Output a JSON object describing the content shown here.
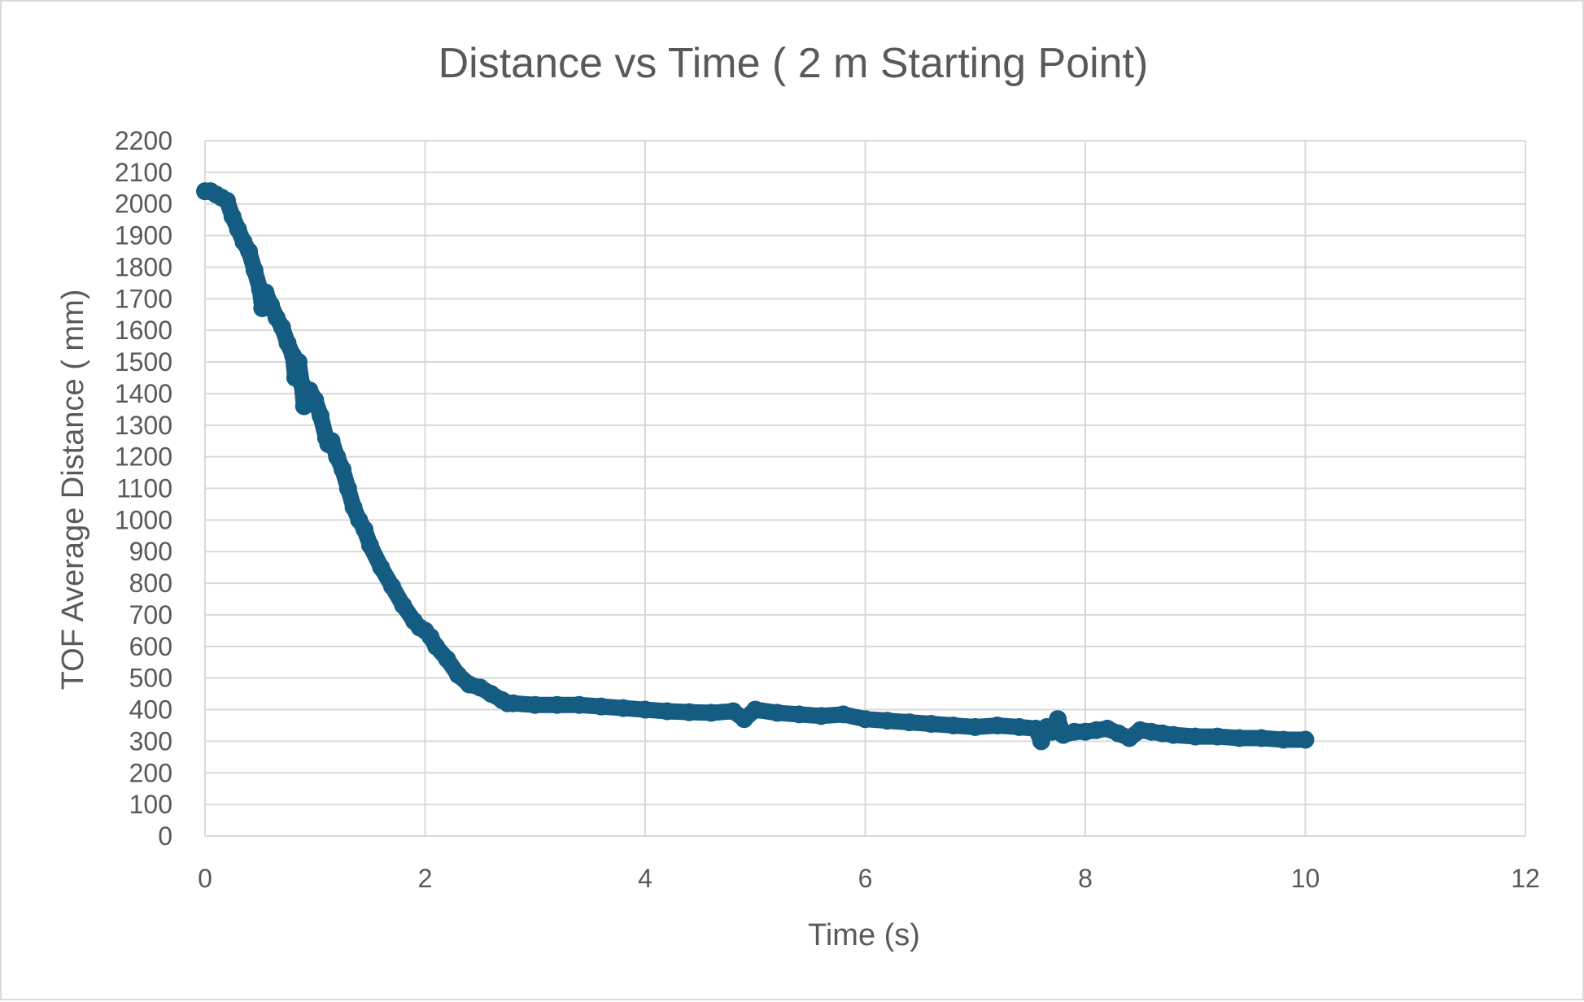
{
  "chart_data": {
    "type": "scatter",
    "title": "Distance vs Time ( 2 m Starting Point)",
    "xlabel": "Time (s)",
    "ylabel": "TOF Average Distance ( mm)",
    "xlim": [
      0,
      12
    ],
    "ylim": [
      0,
      2200
    ],
    "x_ticks": [
      "0",
      "2",
      "4",
      "6",
      "8",
      "10",
      "12"
    ],
    "y_ticks": [
      "0",
      "100",
      "200",
      "300",
      "400",
      "500",
      "600",
      "700",
      "800",
      "900",
      "1000",
      "1100",
      "1200",
      "1300",
      "1400",
      "1500",
      "1600",
      "1700",
      "1800",
      "1900",
      "2000",
      "2100",
      "2200"
    ],
    "grid": true,
    "legend": "none",
    "series_color": "#155c82",
    "series": [
      {
        "x": [
          0,
          0.05,
          0.1,
          0.15,
          0.2,
          0.25,
          0.3,
          0.35,
          0.4,
          0.45,
          0.5,
          0.52,
          0.55,
          0.6,
          0.65,
          0.7,
          0.75,
          0.8,
          0.82,
          0.85,
          0.88,
          0.9,
          0.95,
          1.0,
          1.05,
          1.1,
          1.12,
          1.15,
          1.2,
          1.25,
          1.3,
          1.35,
          1.4,
          1.45,
          1.5,
          1.6,
          1.7,
          1.8,
          1.9,
          1.95,
          2.0,
          2.05,
          2.1,
          2.2,
          2.3,
          2.4,
          2.5,
          2.6,
          2.7,
          2.75,
          2.8,
          3.0,
          3.2,
          3.4,
          3.6,
          3.8,
          4.0,
          4.2,
          4.4,
          4.6,
          4.8,
          4.9,
          5.0,
          5.2,
          5.4,
          5.6,
          5.8,
          6.0,
          6.2,
          6.4,
          6.6,
          6.8,
          7.0,
          7.2,
          7.4,
          7.55,
          7.6,
          7.65,
          7.7,
          7.75,
          7.8,
          7.9,
          8.0,
          8.1,
          8.2,
          8.3,
          8.4,
          8.5,
          8.6,
          8.7,
          8.8,
          9.0,
          9.2,
          9.4,
          9.6,
          9.8,
          10.0
        ],
        "y": [
          2040,
          2040,
          2030,
          2020,
          2010,
          1960,
          1920,
          1880,
          1850,
          1790,
          1730,
          1670,
          1720,
          1680,
          1640,
          1610,
          1560,
          1520,
          1450,
          1500,
          1430,
          1360,
          1410,
          1380,
          1330,
          1260,
          1240,
          1250,
          1200,
          1160,
          1100,
          1040,
          1000,
          970,
          920,
          850,
          790,
          730,
          680,
          660,
          650,
          630,
          600,
          560,
          510,
          480,
          470,
          450,
          430,
          420,
          420,
          415,
          415,
          415,
          410,
          405,
          400,
          395,
          392,
          390,
          395,
          370,
          400,
          390,
          385,
          380,
          385,
          370,
          365,
          360,
          355,
          350,
          345,
          350,
          345,
          340,
          300,
          345,
          330,
          370,
          320,
          330,
          330,
          335,
          340,
          325,
          310,
          335,
          330,
          325,
          320,
          315,
          315,
          310,
          310,
          305,
          305
        ]
      }
    ]
  }
}
